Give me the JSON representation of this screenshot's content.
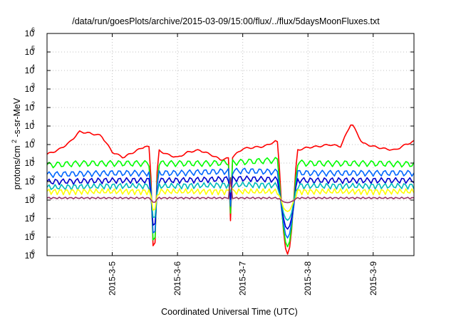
{
  "chart_data": {
    "type": "line",
    "title": "/data/run/goesPlots/archive/2015-03-09/15:00/flux/../flux/5daysMoonFluxes.txt",
    "xlabel": "Coordinated Universal Time (UTC)",
    "ylabel": "protons/cm²-s-sr-MeV",
    "ylabel_main": "protons/cm",
    "ylabel_sup": "2",
    "ylabel_rest": "-s-sr-MeV",
    "scale_y": "log",
    "xlim": [
      "2015-03-04 00:00",
      "2015-03-09 15:00"
    ],
    "ylim": [
      1e-06,
      1000000.0
    ],
    "grid": true,
    "grid_style": "dotted",
    "x_ticks": [
      {
        "date": "2015-03-05 00:00",
        "label": "2015-3-5"
      },
      {
        "date": "2015-03-06 00:00",
        "label": "2015-3-6"
      },
      {
        "date": "2015-03-07 00:00",
        "label": "2015-3-7"
      },
      {
        "date": "2015-03-08 00:00",
        "label": "2015-3-8"
      },
      {
        "date": "2015-03-09 00:00",
        "label": "2015-3-9"
      }
    ],
    "y_ticks": [
      {
        "value": 1e-06,
        "base": "10",
        "exp": "-6"
      },
      {
        "value": 1e-05,
        "base": "10",
        "exp": "-5"
      },
      {
        "value": 0.0001,
        "base": "10",
        "exp": "-4"
      },
      {
        "value": 0.001,
        "base": "10",
        "exp": "-3"
      },
      {
        "value": 0.01,
        "base": "10",
        "exp": "-2"
      },
      {
        "value": 0.1,
        "base": "10",
        "exp": "-1"
      },
      {
        "value": 1,
        "base": "10",
        "exp": "0"
      },
      {
        "value": 10.0,
        "base": "10",
        "exp": "1"
      },
      {
        "value": 100.0,
        "base": "10",
        "exp": "2"
      },
      {
        "value": 1000.0,
        "base": "10",
        "exp": "3"
      },
      {
        "value": 10000.0,
        "base": "10",
        "exp": "4"
      },
      {
        "value": 100000.0,
        "base": "10",
        "exp": "5"
      },
      {
        "value": 1000000.0,
        "base": "10",
        "exp": "6"
      }
    ],
    "series": [
      {
        "color": "#ff0000",
        "points": [
          [
            "2015-03-04 00:00",
            0.3
          ],
          [
            "2015-03-04 04:00",
            0.5
          ],
          [
            "2015-03-04 08:00",
            1.2
          ],
          [
            "2015-03-04 12:00",
            5
          ],
          [
            "2015-03-04 16:00",
            4
          ],
          [
            "2015-03-04 20:00",
            3
          ],
          [
            "2015-03-05 00:00",
            0.4
          ],
          [
            "2015-03-05 04:00",
            0.2
          ],
          [
            "2015-03-05 08:00",
            0.4
          ],
          [
            "2015-03-05 12:00",
            0.8
          ],
          [
            "2015-03-05 16:00",
            0.6
          ],
          [
            "2015-03-05 20:00",
            0.3
          ],
          [
            "2015-03-06 00:00",
            0.2
          ],
          [
            "2015-03-06 04:00",
            0.4
          ],
          [
            "2015-03-06 08:00",
            0.5
          ],
          [
            "2015-03-06 12:00",
            0.3
          ],
          [
            "2015-03-06 16:00",
            0.15
          ],
          [
            "2015-03-06 20:00",
            0.2
          ],
          [
            "2015-03-07 00:00",
            0.6
          ],
          [
            "2015-03-07 04:00",
            0.7
          ],
          [
            "2015-03-07 08:00",
            0.8
          ],
          [
            "2015-03-07 12:00",
            1.5
          ],
          [
            "2015-03-07 16:00",
            0.8
          ],
          [
            "2015-03-07 20:00",
            0.5
          ],
          [
            "2015-03-08 00:00",
            0.7
          ],
          [
            "2015-03-08 04:00",
            0.8
          ],
          [
            "2015-03-08 08:00",
            1.0
          ],
          [
            "2015-03-08 12:00",
            0.8
          ],
          [
            "2015-03-08 16:00",
            15
          ],
          [
            "2015-03-08 20:00",
            1.2
          ],
          [
            "2015-03-09 00:00",
            0.8
          ],
          [
            "2015-03-09 04:00",
            0.6
          ],
          [
            "2015-03-09 08:00",
            0.5
          ],
          [
            "2015-03-09 12:00",
            1.0
          ],
          [
            "2015-03-09 15:00",
            1.5
          ]
        ]
      },
      {
        "color": "#00ff00",
        "points": [
          [
            "2015-03-04 00:00",
            0.08
          ],
          [
            "2015-03-04 12:00",
            0.1
          ],
          [
            "2015-03-05 00:00",
            0.1
          ],
          [
            "2015-03-05 12:00",
            0.1
          ],
          [
            "2015-03-06 00:00",
            0.1
          ],
          [
            "2015-03-06 12:00",
            0.1
          ],
          [
            "2015-03-07 00:00",
            0.12
          ],
          [
            "2015-03-07 12:00",
            0.15
          ],
          [
            "2015-03-08 00:00",
            0.1
          ],
          [
            "2015-03-08 12:00",
            0.1
          ],
          [
            "2015-03-09 00:00",
            0.1
          ],
          [
            "2015-03-09 15:00",
            0.09
          ]
        ]
      },
      {
        "color": "#0066ff",
        "points": [
          [
            "2015-03-04 00:00",
            0.025
          ],
          [
            "2015-03-05 00:00",
            0.03
          ],
          [
            "2015-03-06 00:00",
            0.03
          ],
          [
            "2015-03-07 00:00",
            0.04
          ],
          [
            "2015-03-08 00:00",
            0.03
          ],
          [
            "2015-03-09 00:00",
            0.03
          ],
          [
            "2015-03-09 15:00",
            0.03
          ]
        ]
      },
      {
        "color": "#0000cc",
        "points": [
          [
            "2015-03-04 00:00",
            0.01
          ],
          [
            "2015-03-05 00:00",
            0.012
          ],
          [
            "2015-03-06 00:00",
            0.012
          ],
          [
            "2015-03-07 00:00",
            0.015
          ],
          [
            "2015-03-08 00:00",
            0.012
          ],
          [
            "2015-03-09 00:00",
            0.012
          ],
          [
            "2015-03-09 15:00",
            0.012
          ]
        ]
      },
      {
        "color": "#00bbbb",
        "points": [
          [
            "2015-03-04 00:00",
            0.005
          ],
          [
            "2015-03-05 00:00",
            0.006
          ],
          [
            "2015-03-06 00:00",
            0.006
          ],
          [
            "2015-03-07 00:00",
            0.007
          ],
          [
            "2015-03-08 00:00",
            0.006
          ],
          [
            "2015-03-09 00:00",
            0.006
          ],
          [
            "2015-03-09 15:00",
            0.006
          ]
        ]
      },
      {
        "color": "#ffff00",
        "points": [
          [
            "2015-03-04 00:00",
            0.003
          ],
          [
            "2015-03-05 00:00",
            0.003
          ],
          [
            "2015-03-06 00:00",
            0.003
          ],
          [
            "2015-03-07 00:00",
            0.003
          ],
          [
            "2015-03-08 00:00",
            0.003
          ],
          [
            "2015-03-09 00:00",
            0.003
          ],
          [
            "2015-03-09 15:00",
            0.003
          ]
        ]
      },
      {
        "color": "#993366",
        "points": [
          [
            "2015-03-04 00:00",
            0.0013
          ],
          [
            "2015-03-05 00:00",
            0.0013
          ],
          [
            "2015-03-06 00:00",
            0.0013
          ],
          [
            "2015-03-07 00:00",
            0.0013
          ],
          [
            "2015-03-08 00:00",
            0.0013
          ],
          [
            "2015-03-09 00:00",
            0.0013
          ],
          [
            "2015-03-09 15:00",
            0.0013
          ]
        ]
      }
    ],
    "dropouts": [
      {
        "start": "2015-03-05 14:00",
        "end": "2015-03-05 17:30",
        "min": 1e-06
      },
      {
        "start": "2015-03-06 19:00",
        "end": "2015-03-06 20:00",
        "min": 3e-05
      },
      {
        "start": "2015-03-07 13:00",
        "end": "2015-03-07 22:00",
        "min": 1e-06
      }
    ]
  }
}
